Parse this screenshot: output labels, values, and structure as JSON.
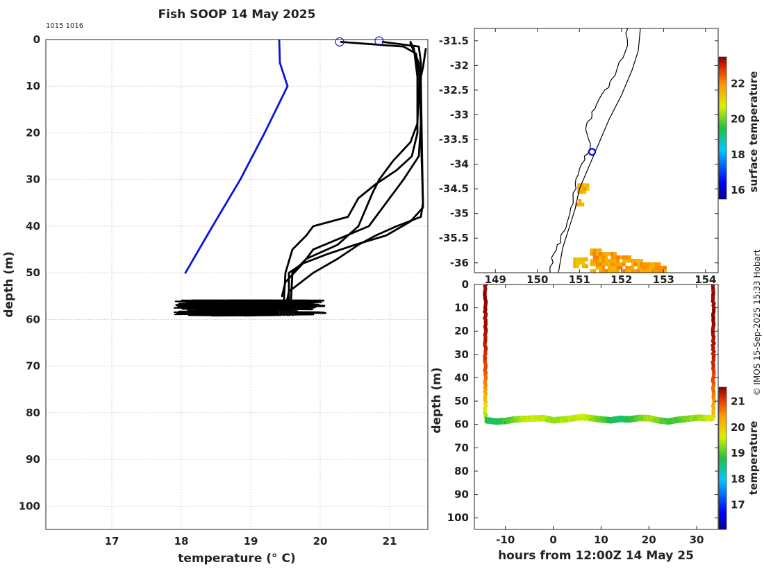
{
  "title": "Fish SOOP 14 May 2025",
  "credit": "© IMOS 15-Sep-2025 15:33 Hobart",
  "chart_data": [
    {
      "id": "profile",
      "type": "line",
      "xlabel": "temperature (° C)",
      "ylabel": "depth (m)",
      "xlim": [
        16.05,
        21.55
      ],
      "ylim": [
        0,
        105
      ],
      "xticks": [
        "17",
        "18",
        "19",
        "20",
        "21"
      ],
      "yticks": [
        "0",
        "10",
        "20",
        "30",
        "40",
        "50",
        "60",
        "70",
        "80",
        "90",
        "100"
      ],
      "grid": true,
      "annotations": [
        {
          "text": "1015 1016",
          "x": 16.05,
          "y": -2.5
        },
        {
          "text": "1016",
          "x": 19.38,
          "y": 59.3
        }
      ],
      "series": [
        {
          "name": "reference",
          "color": "#0a14d6",
          "points": [
            [
              19.41,
              0
            ],
            [
              19.42,
              5
            ],
            [
              19.53,
              10
            ],
            [
              19.2,
              20
            ],
            [
              18.85,
              30
            ],
            [
              18.45,
              40
            ],
            [
              18.06,
              50
            ]
          ]
        },
        {
          "name": "descent-1",
          "color": "#000000",
          "points": [
            [
              20.9,
              0.5
            ],
            [
              21.42,
              1.5
            ],
            [
              21.45,
              5
            ],
            [
              21.45,
              20
            ],
            [
              21.48,
              35
            ],
            [
              21.45,
              38
            ],
            [
              21.1,
              40
            ],
            [
              20.8,
              42
            ],
            [
              20.55,
              44
            ],
            [
              20.25,
              47
            ],
            [
              19.9,
              50
            ],
            [
              19.55,
              54
            ],
            [
              19.52,
              56
            ]
          ]
        },
        {
          "name": "ascent-1",
          "color": "#000000",
          "points": [
            [
              21.52,
              2
            ],
            [
              21.48,
              6
            ],
            [
              21.42,
              10
            ],
            [
              21.4,
              18
            ],
            [
              21.3,
              22
            ],
            [
              21.05,
              26
            ],
            [
              20.85,
              30
            ],
            [
              20.75,
              33
            ],
            [
              20.55,
              40
            ],
            [
              20.25,
              44
            ],
            [
              19.8,
              47
            ],
            [
              19.6,
              50
            ],
            [
              19.58,
              56
            ]
          ]
        },
        {
          "name": "descent-2",
          "color": "#000000",
          "points": [
            [
              21.3,
              0.5
            ],
            [
              21.35,
              2
            ],
            [
              21.4,
              8
            ],
            [
              21.4,
              20
            ],
            [
              21.32,
              25
            ],
            [
              21.1,
              28
            ],
            [
              20.8,
              31
            ],
            [
              20.55,
              34
            ],
            [
              20.4,
              38
            ],
            [
              19.9,
              40
            ],
            [
              19.8,
              42
            ],
            [
              19.6,
              45
            ],
            [
              19.5,
              50
            ],
            [
              19.48,
              55
            ],
            [
              19.48,
              58
            ]
          ]
        },
        {
          "name": "descent-3",
          "color": "#000000",
          "points": [
            [
              20.3,
              0.5
            ],
            [
              21.2,
              1.5
            ],
            [
              21.38,
              3
            ],
            [
              21.45,
              10
            ],
            [
              21.48,
              36
            ],
            [
              21.3,
              39
            ],
            [
              20.95,
              42
            ],
            [
              20.5,
              44
            ],
            [
              20.1,
              46
            ],
            [
              19.75,
              48
            ],
            [
              19.5,
              52
            ],
            [
              19.45,
              55
            ]
          ]
        },
        {
          "name": "descent-4",
          "color": "#000000",
          "points": [
            [
              21.3,
              0.8
            ],
            [
              21.42,
              5
            ],
            [
              21.45,
              18
            ],
            [
              21.42,
              25
            ],
            [
              21.2,
              30
            ],
            [
              20.95,
              35
            ],
            [
              20.7,
              40
            ],
            [
              20.3,
              42.5
            ],
            [
              19.9,
              45
            ],
            [
              19.75,
              48
            ],
            [
              19.55,
              50
            ],
            [
              19.55,
              56
            ]
          ]
        }
      ],
      "bottom_traverse": {
        "tmin": 17.9,
        "tmax": 20.15,
        "dmin": 55.9,
        "dmax": 59.2
      },
      "surface_markers": [
        [
          20.28,
          0.5
        ],
        [
          20.85,
          0.3
        ]
      ]
    },
    {
      "id": "map",
      "type": "scatter",
      "xticks": [
        "149",
        "150",
        "151",
        "152",
        "153",
        "154"
      ],
      "xlim": [
        148.5,
        154.3
      ],
      "yticks": [
        "-31.5",
        "-32",
        "-32.5",
        "-33",
        "-33.5",
        "-34",
        "-34.5",
        "-35",
        "-35.5",
        "-36"
      ],
      "ylim": [
        -36.2,
        -31.25
      ],
      "colorbar_label": "surface temperature",
      "colorbar_ticks": [
        "16",
        "18",
        "20",
        "22"
      ],
      "colorbar_range": [
        15.5,
        23.5
      ],
      "vessel_position": [
        151.3,
        -33.75
      ],
      "coastline": [
        [
          152.15,
          -31.25
        ],
        [
          152.1,
          -31.7
        ],
        [
          151.85,
          -32.2
        ],
        [
          151.6,
          -32.5
        ],
        [
          151.4,
          -32.8
        ],
        [
          151.3,
          -33.0
        ],
        [
          151.15,
          -33.3
        ],
        [
          151.25,
          -33.7
        ],
        [
          151.05,
          -34.0
        ],
        [
          150.9,
          -34.4
        ],
        [
          150.85,
          -34.8
        ],
        [
          150.7,
          -35.2
        ],
        [
          150.55,
          -35.5
        ],
        [
          150.4,
          -35.8
        ],
        [
          150.3,
          -36.2
        ]
      ],
      "shelf_edge": [
        [
          152.45,
          -31.25
        ],
        [
          152.4,
          -31.7
        ],
        [
          152.25,
          -32.1
        ],
        [
          152.0,
          -32.6
        ],
        [
          151.7,
          -33.1
        ],
        [
          151.5,
          -33.5
        ],
        [
          151.25,
          -34.0
        ],
        [
          151.0,
          -34.5
        ],
        [
          150.9,
          -34.9
        ],
        [
          150.75,
          -35.3
        ],
        [
          150.6,
          -35.7
        ],
        [
          150.5,
          -36.2
        ]
      ],
      "sst_patches": [
        {
          "lon": [
            151.25,
            153.0
          ],
          "lat": [
            -36.2,
            -35.6
          ],
          "temp": 21.8
        },
        {
          "lon": [
            150.95,
            151.2
          ],
          "lat": [
            -34.6,
            -34.4
          ],
          "temp": 21.6
        },
        {
          "lon": [
            150.9,
            151.05
          ],
          "lat": [
            -34.85,
            -34.75
          ],
          "temp": 21.7
        },
        {
          "lon": [
            150.85,
            151.15
          ],
          "lat": [
            -36.1,
            -35.9
          ],
          "temp": 21.5
        }
      ]
    },
    {
      "id": "section",
      "type": "scatter",
      "xlabel": "hours from 12:00Z 14 May 25",
      "ylabel": "depth (m)",
      "xlim": [
        -16.5,
        34.5
      ],
      "ylim": [
        0,
        105
      ],
      "xticks": [
        "-10",
        "0",
        "10",
        "20",
        "30"
      ],
      "yticks": [
        "0",
        "10",
        "20",
        "30",
        "40",
        "50",
        "60",
        "70",
        "80",
        "90",
        "100"
      ],
      "colorbar_label": "temperature",
      "colorbar_ticks": [
        "17",
        "18",
        "19",
        "20",
        "21"
      ],
      "colorbar_range": [
        16.05,
        21.55
      ],
      "left_profile": {
        "hour": -14.2,
        "top_temp": 21.5,
        "bottom_temp": 19.3
      },
      "right_profile": {
        "hour": 33.5,
        "top_temp": 21.5,
        "bottom_temp": 20.0
      },
      "bottom_track": [
        [
          -14,
          58.2,
          18.8
        ],
        [
          -12,
          58.7,
          18.7
        ],
        [
          -10,
          58.5,
          18.9
        ],
        [
          -8,
          57.8,
          19.2
        ],
        [
          -6,
          57.6,
          19.5
        ],
        [
          -4,
          57.4,
          19.6
        ],
        [
          -2,
          57.3,
          19.5
        ],
        [
          0,
          58.2,
          19.3
        ],
        [
          2,
          57.9,
          19.4
        ],
        [
          4,
          57.4,
          19.5
        ],
        [
          6,
          56.8,
          19.6
        ],
        [
          8,
          57.3,
          19.4
        ],
        [
          10,
          57.8,
          19.1
        ],
        [
          12,
          58.2,
          18.7
        ],
        [
          14,
          57.6,
          18.6
        ],
        [
          16,
          57.8,
          18.8
        ],
        [
          18,
          57.2,
          19.1
        ],
        [
          20,
          57.3,
          19.4
        ],
        [
          22,
          58.2,
          19.2
        ],
        [
          24,
          58.7,
          18.9
        ],
        [
          26,
          58.0,
          19.0
        ],
        [
          28,
          57.6,
          19.2
        ],
        [
          30,
          57.1,
          19.3
        ],
        [
          32,
          57.3,
          19.5
        ],
        [
          33.5,
          57.3,
          19.7
        ]
      ]
    }
  ]
}
